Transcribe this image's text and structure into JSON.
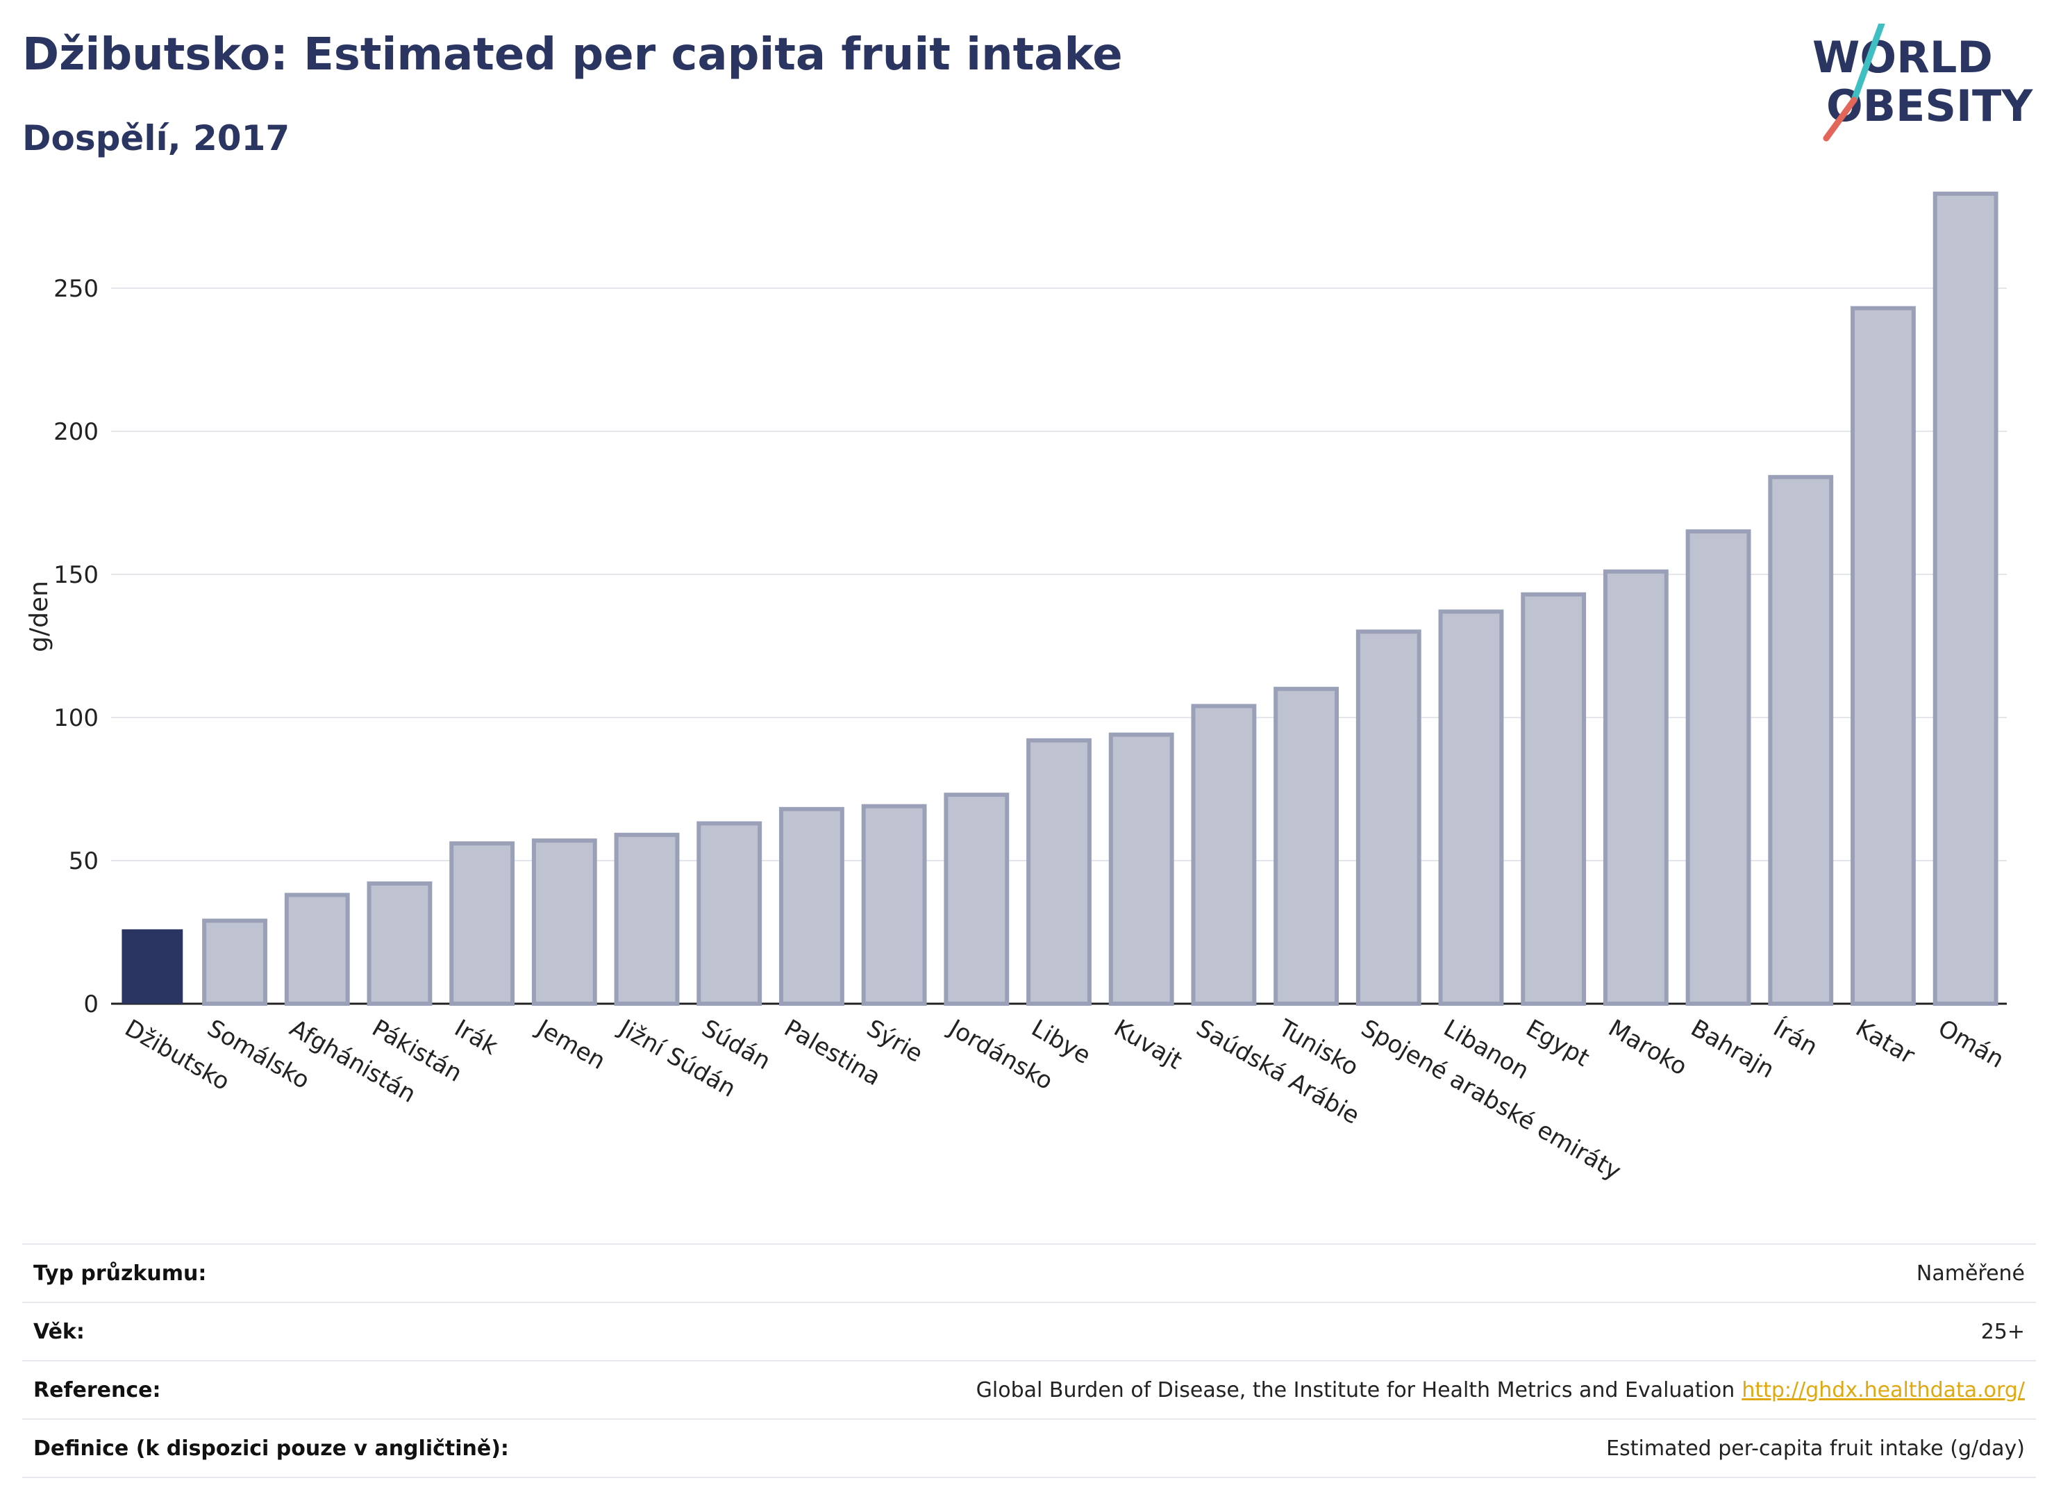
{
  "header": {
    "title": "Džibutsko: Estimated per capita fruit intake",
    "subtitle": "Dospělí, 2017"
  },
  "logo": {
    "line1": "WORLD",
    "line2": "OBESITY",
    "icon": "world-obesity-logo"
  },
  "colors": {
    "highlight": "#2b3561",
    "bar": "#bfc3d1",
    "bar_border": "#9aa0b8",
    "text": "#2b3561",
    "link": "#e0a80f"
  },
  "chart_data": {
    "type": "bar",
    "ylabel": "g/den",
    "xlabel": "",
    "ylim": [
      0,
      290
    ],
    "yticks": [
      0,
      50,
      100,
      150,
      200,
      250
    ],
    "grid": true,
    "highlight": "Džibutsko",
    "categories": [
      "Džibutsko",
      "Somálsko",
      "Afghánistán",
      "Pákistán",
      "Irák",
      "Jemen",
      "Jižní Súdán",
      "Súdán",
      "Palestina",
      "Sýrie",
      "Jordánsko",
      "Libye",
      "Kuvajt",
      "Saúdská Arábie",
      "Tunisko",
      "Spojené arabské emiráty",
      "Libanon",
      "Egypt",
      "Maroko",
      "Bahrajn",
      "Írán",
      "Katar",
      "Omán"
    ],
    "values": [
      26,
      29,
      38,
      42,
      56,
      57,
      59,
      63,
      68,
      69,
      73,
      92,
      94,
      104,
      110,
      130,
      137,
      143,
      151,
      165,
      184,
      243,
      283
    ]
  },
  "info": {
    "rows": [
      {
        "label": "Typ průzkumu:",
        "value": "Naměřené",
        "link": ""
      },
      {
        "label": "Věk:",
        "value": "25+",
        "link": ""
      },
      {
        "label": "Reference:",
        "value": "Global Burden of Disease, the Institute for Health Metrics and Evaluation",
        "link": "http://ghdx.healthdata.org/"
      },
      {
        "label": "Definice (k dispozici pouze v angličtině):",
        "value": "Estimated per-capita fruit intake (g/day)",
        "link": ""
      }
    ]
  }
}
